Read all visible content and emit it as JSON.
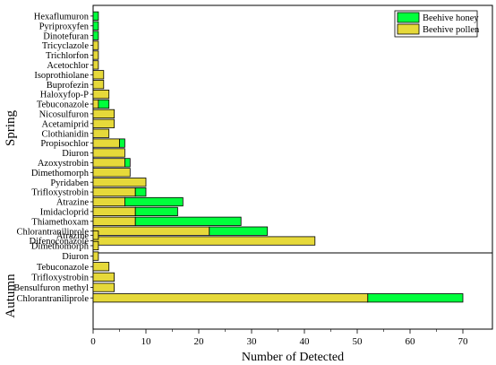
{
  "chart_data": {
    "type": "bar",
    "orientation": "horizontal",
    "stacked": true,
    "xlabel": "Number of Detected",
    "xlim": [
      0,
      75
    ],
    "xticks": [
      0,
      10,
      20,
      30,
      40,
      50,
      60,
      70
    ],
    "grid": false,
    "legend": "top-right",
    "series": [
      {
        "name": "Beehive honey",
        "color": "#00ff3c"
      },
      {
        "name": "Beehive pollen",
        "color": "#e6d93a"
      }
    ],
    "groups": [
      {
        "name": "Spring",
        "items": [
          {
            "label": "Hexaflumuron",
            "pollen": 0,
            "honey": 1
          },
          {
            "label": "Pyriproxyfen",
            "pollen": 0,
            "honey": 1
          },
          {
            "label": "Dinotefuran",
            "pollen": 0,
            "honey": 1
          },
          {
            "label": "Tricyclazole",
            "pollen": 1,
            "honey": 0
          },
          {
            "label": "Trichlorfon",
            "pollen": 1,
            "honey": 0
          },
          {
            "label": "Acetochlor",
            "pollen": 1,
            "honey": 0
          },
          {
            "label": "Isoprothiolane",
            "pollen": 2,
            "honey": 0
          },
          {
            "label": "Buprofezin",
            "pollen": 2,
            "honey": 0
          },
          {
            "label": "Haloxyfop-P",
            "pollen": 3,
            "honey": 0
          },
          {
            "label": "Tebuconazole",
            "pollen": 1,
            "honey": 2
          },
          {
            "label": "Nicosulfuron",
            "pollen": 4,
            "honey": 0
          },
          {
            "label": "Acetamiprid",
            "pollen": 4,
            "honey": 0
          },
          {
            "label": "Clothianidin",
            "pollen": 3,
            "honey": 0
          },
          {
            "label": "Propisochlor",
            "pollen": 5,
            "honey": 1
          },
          {
            "label": "Diuron",
            "pollen": 6,
            "honey": 0
          },
          {
            "label": "Azoxystrobin",
            "pollen": 6,
            "honey": 1
          },
          {
            "label": "Dimethomorph",
            "pollen": 7,
            "honey": 0
          },
          {
            "label": "Pyridaben",
            "pollen": 10,
            "honey": 0
          },
          {
            "label": "Trifloxystrobin",
            "pollen": 8,
            "honey": 2
          },
          {
            "label": "Atrazine",
            "pollen": 6,
            "honey": 11
          },
          {
            "label": "Imidacloprid",
            "pollen": 8,
            "honey": 8
          },
          {
            "label": "Thiamethoxam",
            "pollen": 8,
            "honey": 20
          },
          {
            "label": "Chlorantraniliprole",
            "pollen": 22,
            "honey": 11
          },
          {
            "label": "Difenoconazole",
            "pollen": 42,
            "honey": 0
          }
        ]
      },
      {
        "name": "Autumn",
        "items": [
          {
            "label": "Atrazine",
            "pollen": 1,
            "honey": 0
          },
          {
            "label": "Dimethomorph",
            "pollen": 1,
            "honey": 0
          },
          {
            "label": "Diuron",
            "pollen": 1,
            "honey": 0
          },
          {
            "label": "Tebuconazole",
            "pollen": 3,
            "honey": 0
          },
          {
            "label": "Trifloxystrobin",
            "pollen": 4,
            "honey": 0
          },
          {
            "label": "Bensulfuron methyl",
            "pollen": 4,
            "honey": 0
          },
          {
            "label": "Chlorantraniliprole",
            "pollen": 52,
            "honey": 18
          }
        ]
      }
    ]
  }
}
